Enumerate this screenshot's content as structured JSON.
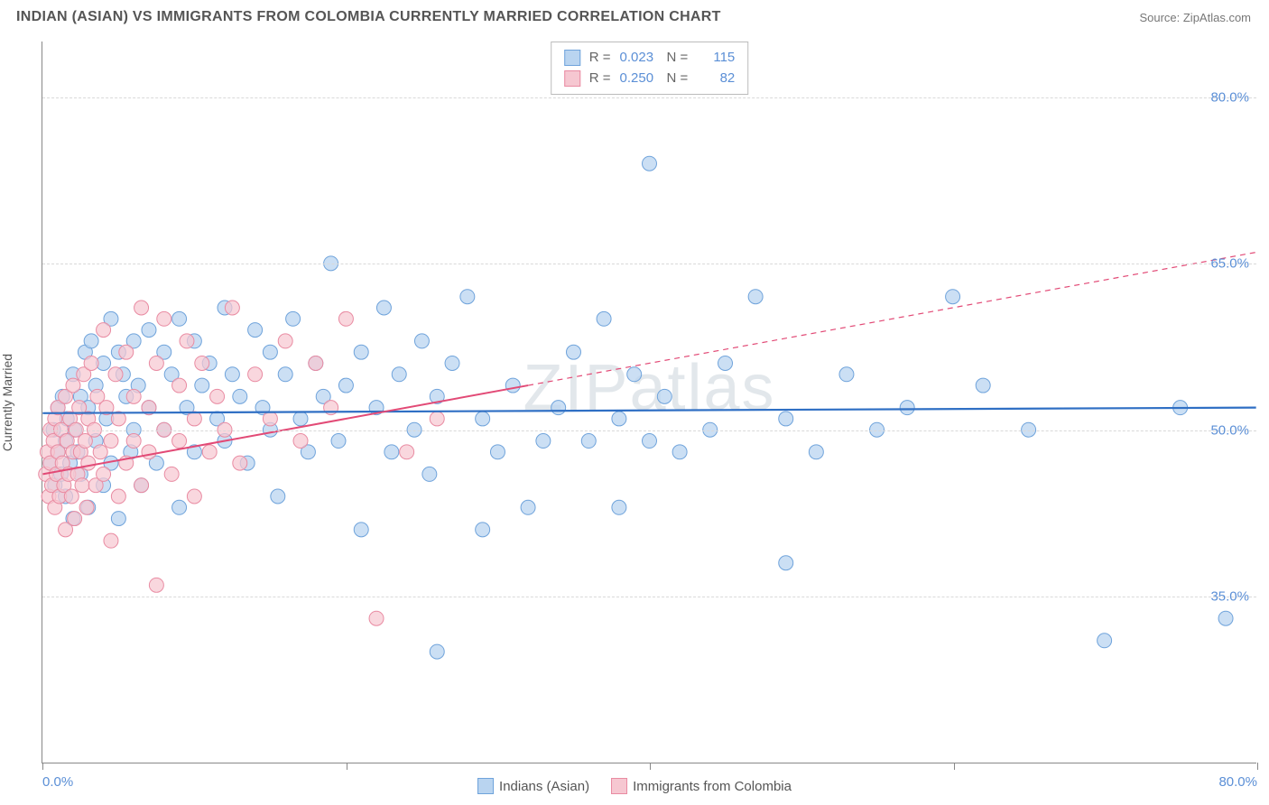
{
  "header": {
    "title": "INDIAN (ASIAN) VS IMMIGRANTS FROM COLOMBIA CURRENTLY MARRIED CORRELATION CHART",
    "source": "Source: ZipAtlas.com"
  },
  "chart": {
    "type": "scatter",
    "y_axis_title": "Currently Married",
    "watermark": "ZIPatlas",
    "xlim": [
      0,
      80
    ],
    "ylim": [
      20,
      85
    ],
    "x_ticks": [
      0,
      20,
      40,
      60,
      80
    ],
    "x_tick_labels": {
      "0": "0.0%",
      "80": "80.0%"
    },
    "y_gridlines": [
      35,
      50,
      65,
      80
    ],
    "y_tick_labels": {
      "35": "35.0%",
      "50": "50.0%",
      "65": "65.0%",
      "80": "80.0%"
    },
    "background_color": "#ffffff",
    "grid_color": "#d9d9d9",
    "axis_color": "#888888",
    "label_color": "#5b8fd6",
    "series": [
      {
        "name": "Indians (Asian)",
        "marker_fill": "#b9d4f0",
        "marker_stroke": "#6fa3db",
        "marker_radius": 8,
        "marker_opacity": 0.75,
        "R": "0.023",
        "N": "115",
        "trend": {
          "x1": 0,
          "y1": 51.5,
          "x2": 80,
          "y2": 52.0,
          "color": "#2f6fc4",
          "width": 2.2,
          "dashed_after_x": null
        },
        "points": [
          [
            0.5,
            47
          ],
          [
            0.7,
            50
          ],
          [
            0.8,
            45
          ],
          [
            1,
            52
          ],
          [
            1,
            48
          ],
          [
            1.2,
            46
          ],
          [
            1.3,
            53
          ],
          [
            1.5,
            49
          ],
          [
            1.5,
            44
          ],
          [
            1.6,
            51
          ],
          [
            1.8,
            47
          ],
          [
            2,
            55
          ],
          [
            2,
            42
          ],
          [
            2.1,
            50
          ],
          [
            2.3,
            48
          ],
          [
            2.5,
            53
          ],
          [
            2.5,
            46
          ],
          [
            2.8,
            57
          ],
          [
            3,
            52
          ],
          [
            3,
            43
          ],
          [
            3.2,
            58
          ],
          [
            3.5,
            49
          ],
          [
            3.5,
            54
          ],
          [
            4,
            45
          ],
          [
            4,
            56
          ],
          [
            4.2,
            51
          ],
          [
            4.5,
            60
          ],
          [
            4.5,
            47
          ],
          [
            5,
            57
          ],
          [
            5,
            42
          ],
          [
            5.3,
            55
          ],
          [
            5.5,
            53
          ],
          [
            5.8,
            48
          ],
          [
            6,
            58
          ],
          [
            6,
            50
          ],
          [
            6.3,
            54
          ],
          [
            6.5,
            45
          ],
          [
            7,
            59
          ],
          [
            7,
            52
          ],
          [
            7.5,
            47
          ],
          [
            8,
            57
          ],
          [
            8,
            50
          ],
          [
            8.5,
            55
          ],
          [
            9,
            60
          ],
          [
            9,
            43
          ],
          [
            9.5,
            52
          ],
          [
            10,
            58
          ],
          [
            10,
            48
          ],
          [
            10.5,
            54
          ],
          [
            11,
            56
          ],
          [
            11.5,
            51
          ],
          [
            12,
            61
          ],
          [
            12,
            49
          ],
          [
            12.5,
            55
          ],
          [
            13,
            53
          ],
          [
            13.5,
            47
          ],
          [
            14,
            59
          ],
          [
            14.5,
            52
          ],
          [
            15,
            57
          ],
          [
            15,
            50
          ],
          [
            15.5,
            44
          ],
          [
            16,
            55
          ],
          [
            16.5,
            60
          ],
          [
            17,
            51
          ],
          [
            17.5,
            48
          ],
          [
            18,
            56
          ],
          [
            18.5,
            53
          ],
          [
            19,
            65
          ],
          [
            19.5,
            49
          ],
          [
            20,
            54
          ],
          [
            21,
            57
          ],
          [
            21,
            41
          ],
          [
            22,
            52
          ],
          [
            22.5,
            61
          ],
          [
            23,
            48
          ],
          [
            23.5,
            55
          ],
          [
            24.5,
            50
          ],
          [
            25,
            58
          ],
          [
            25.5,
            46
          ],
          [
            26,
            53
          ],
          [
            26,
            30
          ],
          [
            27,
            56
          ],
          [
            28,
            62
          ],
          [
            29,
            51
          ],
          [
            29,
            41
          ],
          [
            30,
            48
          ],
          [
            31,
            54
          ],
          [
            32,
            43
          ],
          [
            33,
            49
          ],
          [
            34,
            52
          ],
          [
            35,
            57
          ],
          [
            36,
            49
          ],
          [
            37,
            60
          ],
          [
            38,
            51
          ],
          [
            38,
            43
          ],
          [
            39,
            55
          ],
          [
            40,
            49
          ],
          [
            40,
            74
          ],
          [
            41,
            53
          ],
          [
            42,
            48
          ],
          [
            44,
            50
          ],
          [
            45,
            56
          ],
          [
            47,
            62
          ],
          [
            49,
            51
          ],
          [
            49,
            38
          ],
          [
            51,
            48
          ],
          [
            53,
            55
          ],
          [
            55,
            50
          ],
          [
            57,
            52
          ],
          [
            60,
            62
          ],
          [
            62,
            54
          ],
          [
            65,
            50
          ],
          [
            70,
            31
          ],
          [
            75,
            52
          ],
          [
            78,
            33
          ]
        ]
      },
      {
        "name": "Immigrants from Colombia",
        "marker_fill": "#f6c7d1",
        "marker_stroke": "#e98ba2",
        "marker_radius": 8,
        "marker_opacity": 0.72,
        "R": "0.250",
        "N": "82",
        "trend": {
          "x1": 0,
          "y1": 46,
          "x2": 80,
          "y2": 66,
          "color": "#e24a76",
          "width": 2,
          "dashed_after_x": 32
        },
        "points": [
          [
            0.2,
            46
          ],
          [
            0.3,
            48
          ],
          [
            0.4,
            44
          ],
          [
            0.5,
            47
          ],
          [
            0.5,
            50
          ],
          [
            0.6,
            45
          ],
          [
            0.7,
            49
          ],
          [
            0.8,
            43
          ],
          [
            0.8,
            51
          ],
          [
            0.9,
            46
          ],
          [
            1,
            48
          ],
          [
            1,
            52
          ],
          [
            1.1,
            44
          ],
          [
            1.2,
            50
          ],
          [
            1.3,
            47
          ],
          [
            1.4,
            45
          ],
          [
            1.5,
            53
          ],
          [
            1.5,
            41
          ],
          [
            1.6,
            49
          ],
          [
            1.7,
            46
          ],
          [
            1.8,
            51
          ],
          [
            1.9,
            44
          ],
          [
            2,
            48
          ],
          [
            2,
            54
          ],
          [
            2.1,
            42
          ],
          [
            2.2,
            50
          ],
          [
            2.3,
            46
          ],
          [
            2.4,
            52
          ],
          [
            2.5,
            48
          ],
          [
            2.6,
            45
          ],
          [
            2.7,
            55
          ],
          [
            2.8,
            49
          ],
          [
            2.9,
            43
          ],
          [
            3,
            51
          ],
          [
            3,
            47
          ],
          [
            3.2,
            56
          ],
          [
            3.4,
            50
          ],
          [
            3.5,
            45
          ],
          [
            3.6,
            53
          ],
          [
            3.8,
            48
          ],
          [
            4,
            59
          ],
          [
            4,
            46
          ],
          [
            4.2,
            52
          ],
          [
            4.5,
            49
          ],
          [
            4.5,
            40
          ],
          [
            4.8,
            55
          ],
          [
            5,
            51
          ],
          [
            5,
            44
          ],
          [
            5.5,
            57
          ],
          [
            5.5,
            47
          ],
          [
            6,
            53
          ],
          [
            6,
            49
          ],
          [
            6.5,
            61
          ],
          [
            6.5,
            45
          ],
          [
            7,
            52
          ],
          [
            7,
            48
          ],
          [
            7.5,
            56
          ],
          [
            7.5,
            36
          ],
          [
            8,
            50
          ],
          [
            8,
            60
          ],
          [
            8.5,
            46
          ],
          [
            9,
            54
          ],
          [
            9,
            49
          ],
          [
            9.5,
            58
          ],
          [
            10,
            51
          ],
          [
            10,
            44
          ],
          [
            10.5,
            56
          ],
          [
            11,
            48
          ],
          [
            11.5,
            53
          ],
          [
            12,
            50
          ],
          [
            12.5,
            61
          ],
          [
            13,
            47
          ],
          [
            14,
            55
          ],
          [
            15,
            51
          ],
          [
            16,
            58
          ],
          [
            17,
            49
          ],
          [
            18,
            56
          ],
          [
            19,
            52
          ],
          [
            20,
            60
          ],
          [
            22,
            33
          ],
          [
            24,
            48
          ],
          [
            26,
            51
          ]
        ]
      }
    ],
    "stat_legend": {
      "rows": [
        {
          "swatch_fill": "#b9d4f0",
          "swatch_stroke": "#6fa3db",
          "r_label": "R =",
          "r_val": "0.023",
          "n_label": "N =",
          "n_val": "115"
        },
        {
          "swatch_fill": "#f6c7d1",
          "swatch_stroke": "#e98ba2",
          "r_label": "R =",
          "r_val": "0.250",
          "n_label": "N =",
          "n_val": "82"
        }
      ]
    },
    "footer_legend": [
      {
        "swatch_fill": "#b9d4f0",
        "swatch_stroke": "#6fa3db",
        "label": "Indians (Asian)"
      },
      {
        "swatch_fill": "#f6c7d1",
        "swatch_stroke": "#e98ba2",
        "label": "Immigrants from Colombia"
      }
    ]
  }
}
